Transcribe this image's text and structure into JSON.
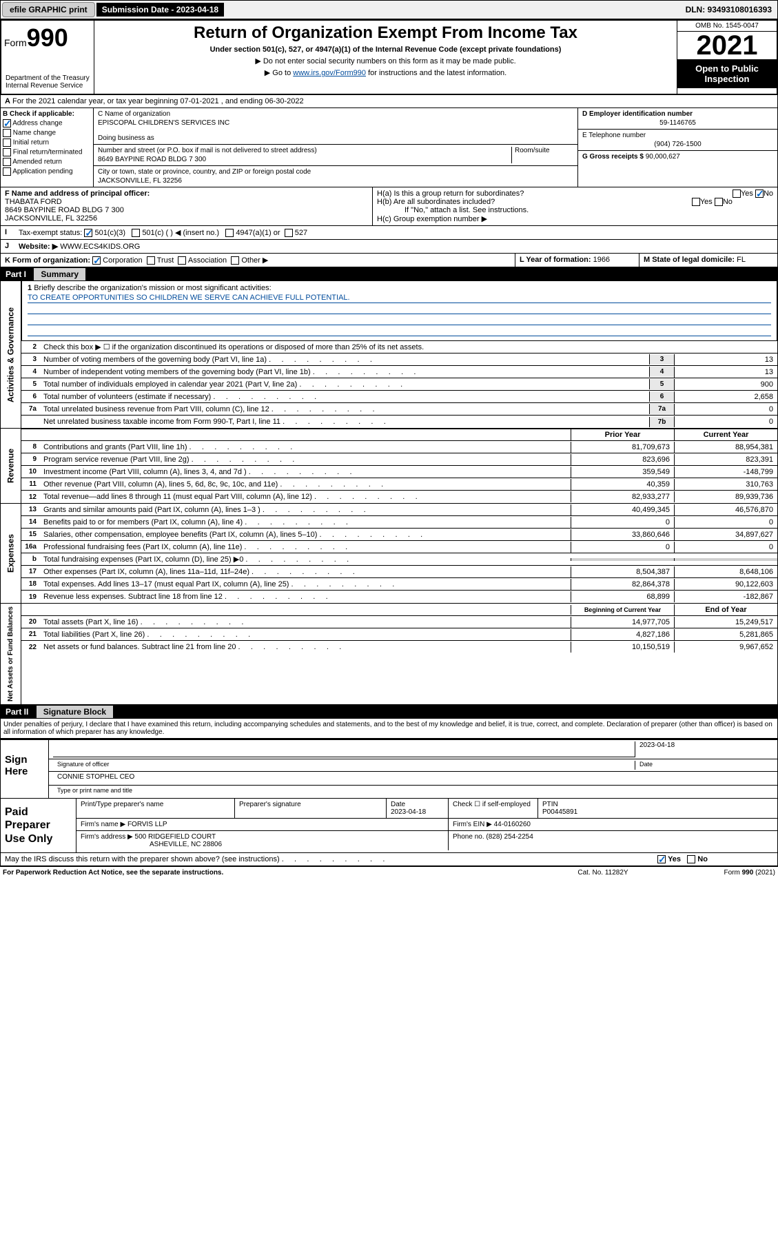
{
  "topbar": {
    "efile": "efile GRAPHIC print",
    "sub_date_label": "Submission Date - 2023-04-18",
    "dln": "DLN: 93493108016393"
  },
  "header": {
    "form_label": "Form",
    "form_num": "990",
    "dept": "Department of the Treasury\nInternal Revenue Service",
    "title": "Return of Organization Exempt From Income Tax",
    "sub": "Under section 501(c), 527, or 4947(a)(1) of the Internal Revenue Code (except private foundations)",
    "instr1": "▶ Do not enter social security numbers on this form as it may be made public.",
    "instr2_pre": "▶ Go to ",
    "instr2_link": "www.irs.gov/Form990",
    "instr2_post": " for instructions and the latest information.",
    "omb": "OMB No. 1545-0047",
    "year": "2021",
    "open_pub": "Open to Public Inspection"
  },
  "lineA": "For the 2021 calendar year, or tax year beginning 07-01-2021   , and ending 06-30-2022",
  "boxB": {
    "title": "B Check if applicable:",
    "addr_change": "Address change",
    "name_change": "Name change",
    "initial": "Initial return",
    "final": "Final return/terminated",
    "amended": "Amended return",
    "app_pending": "Application pending"
  },
  "boxC": {
    "name_label": "C Name of organization",
    "name": "EPISCOPAL CHILDREN'S SERVICES INC",
    "dba_label": "Doing business as",
    "addr_label": "Number and street (or P.O. box if mail is not delivered to street address)",
    "room_label": "Room/suite",
    "addr": "8649 BAYPINE ROAD BLDG 7 300",
    "city_label": "City or town, state or province, country, and ZIP or foreign postal code",
    "city": "JACKSONVILLE, FL  32256"
  },
  "boxD": {
    "label": "D Employer identification number",
    "val": "59-1146765"
  },
  "boxE": {
    "label": "E Telephone number",
    "val": "(904) 726-1500"
  },
  "boxG": {
    "label": "G Gross receipts $",
    "val": "90,000,627"
  },
  "boxF": {
    "label": "F Name and address of principal officer:",
    "name": "THABATA FORD",
    "addr1": "8649 BAYPINE ROAD BLDG 7 300",
    "addr2": "JACKSONVILLE, FL  32256"
  },
  "boxH": {
    "a": "H(a)  Is this a group return for subordinates?",
    "b": "H(b)  Are all subordinates included?",
    "b_note": "If \"No,\" attach a list. See instructions.",
    "c": "H(c)  Group exemption number ▶",
    "yes": "Yes",
    "no": "No"
  },
  "boxI": {
    "label": "Tax-exempt status:",
    "opt1": "501(c)(3)",
    "opt2": "501(c) (   ) ◀ (insert no.)",
    "opt3": "4947(a)(1) or",
    "opt4": "527"
  },
  "boxJ": {
    "label": "Website: ▶",
    "val": "WWW.ECS4KIDS.ORG"
  },
  "boxK": {
    "label": "K Form of organization:",
    "corp": "Corporation",
    "trust": "Trust",
    "assoc": "Association",
    "other": "Other ▶"
  },
  "boxL": {
    "label": "L Year of formation:",
    "val": "1966"
  },
  "boxM": {
    "label": "M State of legal domicile:",
    "val": "FL"
  },
  "part1": {
    "label": "Part I",
    "title": "Summary"
  },
  "summary": {
    "q1": "Briefly describe the organization's mission or most significant activities:",
    "mission": "TO CREATE OPPORTUNITIES SO CHILDREN WE SERVE CAN ACHIEVE FULL POTENTIAL.",
    "q2": "Check this box ▶ ☐  if the organization discontinued its operations or disposed of more than 25% of its net assets.",
    "lines_gov": [
      {
        "n": "3",
        "t": "Number of voting members of the governing body (Part VI, line 1a)",
        "box": "3",
        "v": "13"
      },
      {
        "n": "4",
        "t": "Number of independent voting members of the governing body (Part VI, line 1b)",
        "box": "4",
        "v": "13"
      },
      {
        "n": "5",
        "t": "Total number of individuals employed in calendar year 2021 (Part V, line 2a)",
        "box": "5",
        "v": "900"
      },
      {
        "n": "6",
        "t": "Total number of volunteers (estimate if necessary)",
        "box": "6",
        "v": "2,658"
      },
      {
        "n": "7a",
        "t": "Total unrelated business revenue from Part VIII, column (C), line 12",
        "box": "7a",
        "v": "0"
      },
      {
        "n": "",
        "t": "Net unrelated business taxable income from Form 990-T, Part I, line 11",
        "box": "7b",
        "v": "0"
      }
    ],
    "col_hdr_prior": "Prior Year",
    "col_hdr_current": "Current Year",
    "lines_rev": [
      {
        "n": "8",
        "t": "Contributions and grants (Part VIII, line 1h)",
        "p": "81,709,673",
        "c": "88,954,381"
      },
      {
        "n": "9",
        "t": "Program service revenue (Part VIII, line 2g)",
        "p": "823,696",
        "c": "823,391"
      },
      {
        "n": "10",
        "t": "Investment income (Part VIII, column (A), lines 3, 4, and 7d )",
        "p": "359,549",
        "c": "-148,799"
      },
      {
        "n": "11",
        "t": "Other revenue (Part VIII, column (A), lines 5, 6d, 8c, 9c, 10c, and 11e)",
        "p": "40,359",
        "c": "310,763"
      },
      {
        "n": "12",
        "t": "Total revenue—add lines 8 through 11 (must equal Part VIII, column (A), line 12)",
        "p": "82,933,277",
        "c": "89,939,736"
      }
    ],
    "lines_exp": [
      {
        "n": "13",
        "t": "Grants and similar amounts paid (Part IX, column (A), lines 1–3 )",
        "p": "40,499,345",
        "c": "46,576,870"
      },
      {
        "n": "14",
        "t": "Benefits paid to or for members (Part IX, column (A), line 4)",
        "p": "0",
        "c": "0"
      },
      {
        "n": "15",
        "t": "Salaries, other compensation, employee benefits (Part IX, column (A), lines 5–10)",
        "p": "33,860,646",
        "c": "34,897,627"
      },
      {
        "n": "16a",
        "t": "Professional fundraising fees (Part IX, column (A), line 11e)",
        "p": "0",
        "c": "0"
      },
      {
        "n": "b",
        "t": "Total fundraising expenses (Part IX, column (D), line 25) ▶0",
        "p": "",
        "c": "",
        "shade": true
      },
      {
        "n": "17",
        "t": "Other expenses (Part IX, column (A), lines 11a–11d, 11f–24e)",
        "p": "8,504,387",
        "c": "8,648,106"
      },
      {
        "n": "18",
        "t": "Total expenses. Add lines 13–17 (must equal Part IX, column (A), line 25)",
        "p": "82,864,378",
        "c": "90,122,603"
      },
      {
        "n": "19",
        "t": "Revenue less expenses. Subtract line 18 from line 12",
        "p": "68,899",
        "c": "-182,867"
      }
    ],
    "col_hdr_beg": "Beginning of Current Year",
    "col_hdr_end": "End of Year",
    "lines_net": [
      {
        "n": "20",
        "t": "Total assets (Part X, line 16)",
        "p": "14,977,705",
        "c": "15,249,517"
      },
      {
        "n": "21",
        "t": "Total liabilities (Part X, line 26)",
        "p": "4,827,186",
        "c": "5,281,865"
      },
      {
        "n": "22",
        "t": "Net assets or fund balances. Subtract line 21 from line 20",
        "p": "10,150,519",
        "c": "9,967,652"
      }
    ],
    "vert_gov": "Activities & Governance",
    "vert_rev": "Revenue",
    "vert_exp": "Expenses",
    "vert_net": "Net Assets or Fund Balances"
  },
  "part2": {
    "label": "Part II",
    "title": "Signature Block"
  },
  "decl": "Under penalties of perjury, I declare that I have examined this return, including accompanying schedules and statements, and to the best of my knowledge and belief, it is true, correct, and complete. Declaration of preparer (other than officer) is based on all information of which preparer has any knowledge.",
  "sign": {
    "here": "Sign Here",
    "sig_label": "Signature of officer",
    "date_label": "Date",
    "date": "2023-04-18",
    "name_label": "Type or print name and title",
    "name": "CONNIE STOPHEL CEO"
  },
  "paid": {
    "title": "Paid Preparer Use Only",
    "h1": "Print/Type preparer's name",
    "h2": "Preparer's signature",
    "h3": "Date",
    "date": "2023-04-18",
    "check_label": "Check ☐ if self-employed",
    "ptin_label": "PTIN",
    "ptin": "P00445891",
    "firm_name_label": "Firm's name    ▶",
    "firm_name": "FORVIS LLP",
    "firm_ein_label": "Firm's EIN ▶",
    "firm_ein": "44-0160260",
    "firm_addr_label": "Firm's address ▶",
    "firm_addr1": "500 RIDGEFIELD COURT",
    "firm_addr2": "ASHEVILLE, NC  28806",
    "phone_label": "Phone no.",
    "phone": "(828) 254-2254"
  },
  "discuss": {
    "q": "May the IRS discuss this return with the preparer shown above? (see instructions)",
    "yes": "Yes",
    "no": "No"
  },
  "footer": {
    "pra": "For Paperwork Reduction Act Notice, see the separate instructions.",
    "cat": "Cat. No. 11282Y",
    "form": "Form 990 (2021)"
  },
  "colors": {
    "link": "#004b9b",
    "check": "#0066cc",
    "shade": "#d0d0d0"
  }
}
